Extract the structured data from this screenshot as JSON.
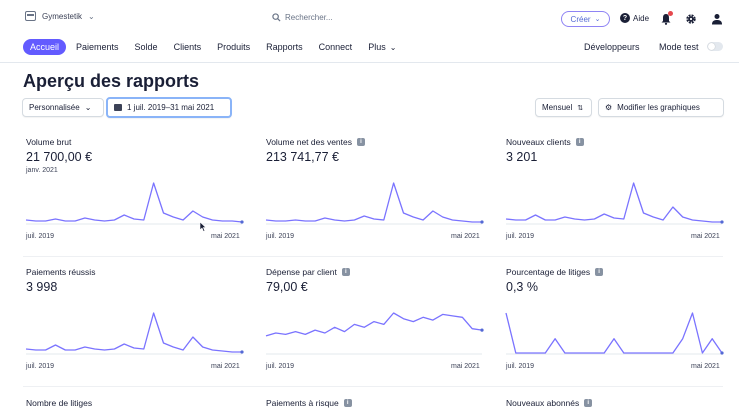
{
  "account": {
    "name": "Gymestetik"
  },
  "search": {
    "placeholder": "Rechercher..."
  },
  "header": {
    "create_label": "Créer",
    "help_label": "Aide"
  },
  "nav": {
    "items": [
      "Accueil",
      "Paiements",
      "Solde",
      "Clients",
      "Produits",
      "Rapports",
      "Connect",
      "Plus"
    ],
    "developers": "Développeurs",
    "test_mode": "Mode test"
  },
  "page": {
    "title": "Aperçu des rapports"
  },
  "filters": {
    "preset": "Personnalisée",
    "date_range": "1 juil. 2019–31 mai 2021",
    "interval": "Mensuel",
    "edit_charts": "Modifier les graphiques"
  },
  "colors": {
    "accent": "#635bff",
    "line": "#7a73ff"
  },
  "cards": [
    {
      "title": "Volume brut",
      "info": false,
      "value": "21 700,00 €",
      "sub": "janv. 2021",
      "x_start": "juil. 2019",
      "x_end": "mai 2021",
      "series": [
        3,
        2,
        2,
        4,
        2,
        2,
        5,
        3,
        2,
        3,
        8,
        4,
        3,
        40,
        10,
        6,
        3,
        12,
        6,
        3,
        2,
        2,
        1
      ]
    },
    {
      "title": "Volume net des ventes",
      "info": true,
      "value": "213 741,77 €",
      "sub": "",
      "x_start": "juil. 2019",
      "x_end": "mai 2021",
      "series": [
        3,
        2,
        2,
        3,
        2,
        2,
        5,
        3,
        2,
        3,
        7,
        4,
        3,
        40,
        10,
        6,
        3,
        12,
        6,
        3,
        2,
        1,
        1
      ]
    },
    {
      "title": "Nouveaux clients",
      "info": true,
      "value": "3 201",
      "sub": "",
      "x_start": "juil. 2019",
      "x_end": "mai 2021",
      "series": [
        4,
        3,
        3,
        8,
        3,
        3,
        6,
        4,
        3,
        4,
        9,
        5,
        4,
        40,
        10,
        6,
        3,
        16,
        6,
        3,
        2,
        1,
        1
      ]
    },
    {
      "title": "Paiements réussis",
      "info": false,
      "value": "3 998",
      "sub": "",
      "x_start": "juil. 2019",
      "x_end": "mai 2021",
      "series": [
        4,
        3,
        3,
        8,
        3,
        3,
        6,
        4,
        3,
        4,
        9,
        5,
        4,
        40,
        10,
        6,
        3,
        16,
        6,
        3,
        2,
        1,
        1
      ]
    },
    {
      "title": "Dépense par client",
      "info": true,
      "value": "79,00 €",
      "sub": "",
      "x_start": "juil. 2019",
      "x_end": "mai 2021",
      "series": [
        12,
        14,
        13,
        15,
        13,
        16,
        14,
        18,
        15,
        20,
        18,
        22,
        20,
        28,
        24,
        22,
        25,
        23,
        27,
        26,
        25,
        17,
        16
      ]
    },
    {
      "title": "Pourcentage de litiges",
      "info": true,
      "value": "0,3 %",
      "sub": "",
      "x_start": "juil. 2019",
      "x_end": "mai 2021",
      "series": [
        28,
        0,
        0,
        0,
        0,
        10,
        0,
        0,
        0,
        0,
        0,
        10,
        0,
        0,
        0,
        0,
        0,
        0,
        10,
        28,
        0,
        10,
        0
      ]
    }
  ],
  "bottom_cards": [
    {
      "title": "Nombre de litiges",
      "info": false
    },
    {
      "title": "Paiements à risque",
      "info": true
    },
    {
      "title": "Nouveaux abonnés",
      "info": true
    }
  ]
}
